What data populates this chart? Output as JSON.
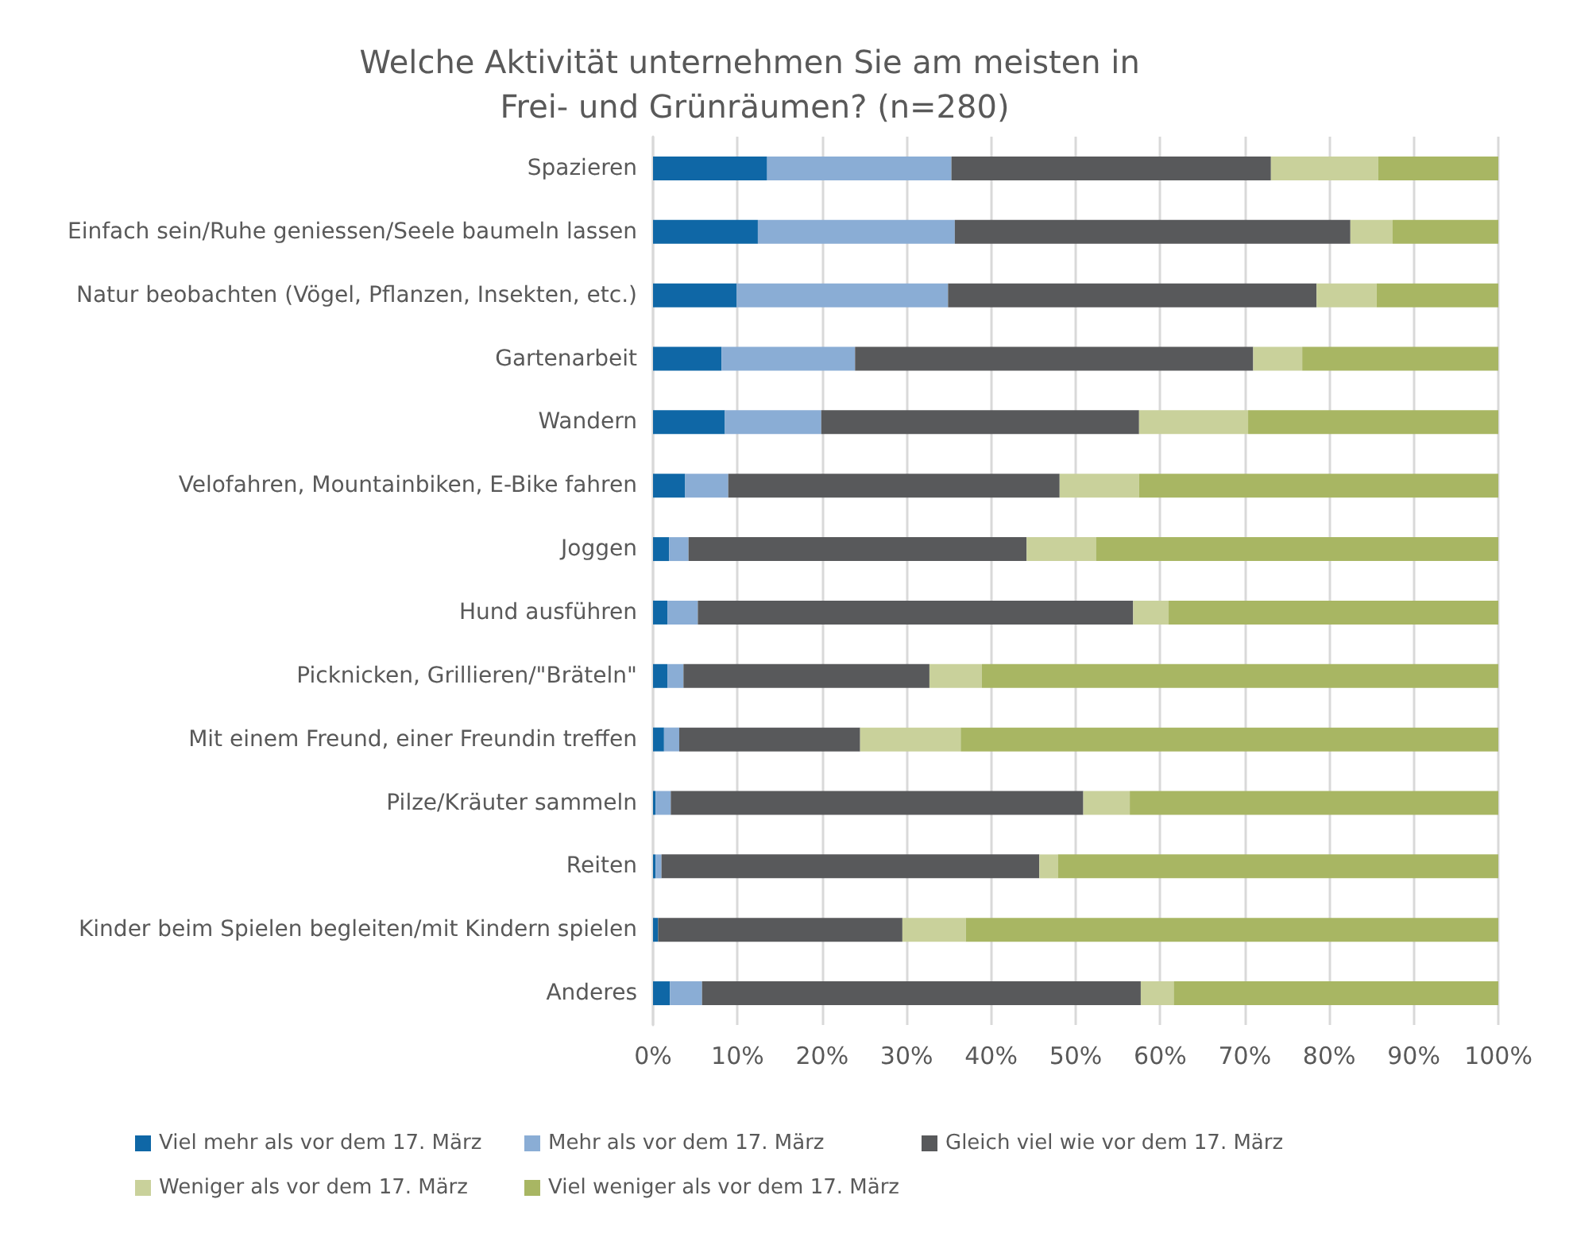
{
  "chart_data": {
    "type": "bar",
    "orientation": "horizontal",
    "stacked": true,
    "title": "Welche Aktivität unternehmen Sie am meisten in Frei- und Grünräumen? (n=280)",
    "categories": [
      "Spazieren",
      "Einfach sein/Ruhe geniessen/Seele baumeln lassen",
      "Natur beobachten (Vögel, Pflanzen, Insekten, etc.)",
      "Gartenarbeit",
      "Wandern",
      "Velofahren, Mountainbiken, E-Bike fahren",
      "Joggen",
      "Hund ausführen",
      "Picknicken, Grillieren/\"Bräteln\"",
      "Mit einem Freund, einer Freundin treffen",
      "Pilze/Kräuter sammeln",
      "Reiten",
      "Kinder beim Spielen begleiten/mit Kindern spielen",
      "Anderes"
    ],
    "series": [
      {
        "name": "Viel mehr als vor dem 17. März",
        "color": "#0f67a6",
        "values": [
          13.5,
          12.4,
          9.9,
          8.1,
          8.5,
          3.8,
          1.9,
          1.7,
          1.7,
          1.3,
          0.3,
          0.3,
          0.6,
          2.0
        ]
      },
      {
        "name": "Mehr als vor dem 17. März",
        "color": "#8aadd5",
        "values": [
          21.8,
          23.3,
          25.0,
          15.8,
          11.4,
          5.1,
          2.3,
          3.6,
          1.9,
          1.8,
          1.8,
          0.7,
          0,
          3.8
        ]
      },
      {
        "name": "Gleich viel wie vor dem 17. März",
        "color": "#58595b",
        "values": [
          37.8,
          46.8,
          43.6,
          47.1,
          37.6,
          39.2,
          40.0,
          51.5,
          29.1,
          21.4,
          48.8,
          44.7,
          28.9,
          51.9
        ]
      },
      {
        "name": "Weniger als vor dem 17. März",
        "color": "#c9d19b",
        "values": [
          12.7,
          5.0,
          7.1,
          5.8,
          12.9,
          9.4,
          8.2,
          4.2,
          6.2,
          11.9,
          5.5,
          2.2,
          7.5,
          3.9
        ]
      },
      {
        "name": "Viel weniger als vor dem 17. März",
        "color": "#a8b663",
        "values": [
          14.2,
          12.5,
          14.4,
          23.2,
          29.6,
          42.5,
          47.6,
          39.0,
          61.1,
          63.6,
          43.6,
          52.1,
          63.0,
          38.4
        ]
      }
    ],
    "xlim": [
      0,
      100
    ],
    "xticks": [
      {
        "value": 0,
        "label": "0%"
      },
      {
        "value": 10,
        "label": "10%"
      },
      {
        "value": 20,
        "label": "20%"
      },
      {
        "value": 30,
        "label": "30%"
      },
      {
        "value": 40,
        "label": "40%"
      },
      {
        "value": 50,
        "label": "50%"
      },
      {
        "value": 60,
        "label": "60%"
      },
      {
        "value": 70,
        "label": "70%"
      },
      {
        "value": 80,
        "label": "80%"
      },
      {
        "value": 90,
        "label": "90%"
      },
      {
        "value": 100,
        "label": "100%"
      }
    ],
    "grid": "x",
    "legend": "bottom"
  }
}
